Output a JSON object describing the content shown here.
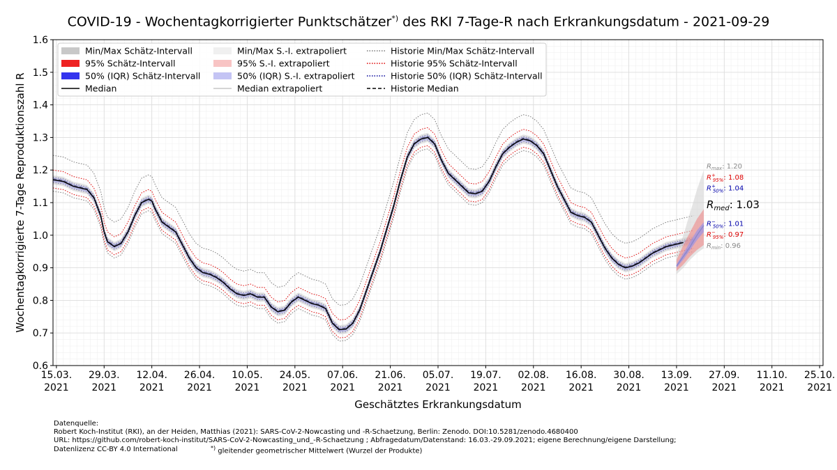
{
  "title": {
    "main": "COVID-19 - Wochentagkorrigierter Punktschätzer",
    "sup": "*)",
    "rest": " des RKI 7-Tage-R nach Erkrankungsdatum - 2021-09-29"
  },
  "colors": {
    "minmax": "#c8c8c8",
    "ci95": "#ee2222",
    "iqr50": "#3333ee",
    "median": "#000000",
    "hist_minmax": "#777777",
    "hist_95": "#dd0000",
    "hist_50": "#000099",
    "grid": "#dddddd"
  },
  "chart_data": {
    "type": "line",
    "xlabel": "Geschätztes Erkrankungsdatum",
    "ylabel": "Wochentagkorrigierte 7-Tage Reproduktionszahl R",
    "ylim": [
      0.6,
      1.6
    ],
    "xlim_days": [
      -1,
      225
    ],
    "x_start_date": "2021-03-15",
    "y_ticks": [
      "0.6",
      "0.7",
      "0.8",
      "0.9",
      "1.0",
      "1.1",
      "1.2",
      "1.3",
      "1.4",
      "1.5",
      "1.6"
    ],
    "x_ticks": [
      {
        "day": 0,
        "line1": "15.03.",
        "line2": "2021"
      },
      {
        "day": 14,
        "line1": "29.03.",
        "line2": "2021"
      },
      {
        "day": 28,
        "line1": "12.04.",
        "line2": "2021"
      },
      {
        "day": 42,
        "line1": "26.04.",
        "line2": "2021"
      },
      {
        "day": 56,
        "line1": "10.05.",
        "line2": "2021"
      },
      {
        "day": 70,
        "line1": "24.05.",
        "line2": "2021"
      },
      {
        "day": 84,
        "line1": "07.06.",
        "line2": "2021"
      },
      {
        "day": 98,
        "line1": "21.06.",
        "line2": "2021"
      },
      {
        "day": 112,
        "line1": "05.07.",
        "line2": "2021"
      },
      {
        "day": 126,
        "line1": "19.07.",
        "line2": "2021"
      },
      {
        "day": 140,
        "line1": "02.08.",
        "line2": "2021"
      },
      {
        "day": 154,
        "line1": "16.08.",
        "line2": "2021"
      },
      {
        "day": 168,
        "line1": "30.08.",
        "line2": "2021"
      },
      {
        "day": 182,
        "line1": "13.09.",
        "line2": "2021"
      },
      {
        "day": 196,
        "line1": "27.09.",
        "line2": "2021"
      },
      {
        "day": 210,
        "line1": "11.10.",
        "line2": "2021"
      },
      {
        "day": 224,
        "line1": "25.10.",
        "line2": "2021"
      }
    ],
    "median_history": {
      "days": [
        -1,
        2,
        5,
        7,
        9,
        11,
        13,
        14,
        15,
        17,
        19,
        21,
        23,
        25,
        27,
        28,
        29,
        31,
        33,
        35,
        37,
        39,
        41,
        43,
        45,
        47,
        49,
        51,
        53,
        55,
        57,
        59,
        61,
        63,
        65,
        67,
        69,
        71,
        73,
        75,
        77,
        79,
        81,
        83,
        85,
        87,
        89,
        91,
        93,
        95,
        97,
        99,
        101,
        103,
        105,
        107,
        109,
        111,
        113,
        115,
        117,
        119,
        121,
        123,
        125,
        127,
        129,
        131,
        133,
        135,
        137,
        139,
        141,
        143,
        145,
        147,
        149,
        151,
        153,
        155,
        157,
        159,
        161,
        163,
        165,
        167,
        169,
        171,
        173,
        175,
        177,
        179,
        181,
        183,
        185,
        187
      ],
      "values": [
        1.17,
        1.165,
        1.15,
        1.145,
        1.14,
        1.115,
        1.06,
        1.01,
        0.98,
        0.965,
        0.975,
        1.01,
        1.06,
        1.1,
        1.11,
        1.105,
        1.08,
        1.04,
        1.025,
        1.01,
        0.97,
        0.93,
        0.9,
        0.885,
        0.88,
        0.87,
        0.855,
        0.835,
        0.82,
        0.815,
        0.82,
        0.81,
        0.81,
        0.78,
        0.765,
        0.77,
        0.795,
        0.81,
        0.8,
        0.79,
        0.785,
        0.775,
        0.73,
        0.71,
        0.712,
        0.73,
        0.77,
        0.83,
        0.89,
        0.95,
        1.02,
        1.09,
        1.17,
        1.24,
        1.28,
        1.295,
        1.3,
        1.28,
        1.23,
        1.19,
        1.17,
        1.15,
        1.13,
        1.127,
        1.135,
        1.165,
        1.21,
        1.25,
        1.27,
        1.285,
        1.295,
        1.29,
        1.275,
        1.25,
        1.2,
        1.15,
        1.11,
        1.07,
        1.06,
        1.055,
        1.04,
        1.0,
        0.96,
        0.93,
        0.91,
        0.9,
        0.905,
        0.915,
        0.93,
        0.945,
        0.955,
        0.965,
        0.97,
        0.975,
        0.98,
        0.985
      ]
    },
    "offsets": {
      "iqr50": [
        -0.008,
        0.008
      ],
      "ci95": [
        -0.025,
        0.03
      ],
      "minmax": [
        -0.035,
        0.075
      ]
    },
    "extrapolated": {
      "days": [
        182,
        184,
        186,
        188,
        190
      ],
      "median": [
        0.905,
        0.935,
        0.965,
        1.0,
        1.03
      ],
      "min": [
        0.88,
        0.9,
        0.925,
        0.945,
        0.96
      ],
      "max": [
        0.94,
        1.0,
        1.07,
        1.14,
        1.2
      ],
      "low95": [
        0.89,
        0.91,
        0.935,
        0.955,
        0.97
      ],
      "high95": [
        0.925,
        0.97,
        1.01,
        1.05,
        1.08
      ],
      "low50": [
        0.9,
        0.925,
        0.955,
        0.985,
        1.01
      ],
      "high50": [
        0.91,
        0.945,
        0.98,
        1.015,
        1.04
      ]
    },
    "annotations": [
      {
        "label": "R",
        "sub": "max",
        "sup": "",
        "value": ": 1.20",
        "y": 1.205,
        "color": "#888888",
        "big": false
      },
      {
        "label": "R",
        "sub": "95%",
        "sup": "+",
        "value": ": 1.08",
        "y": 1.17,
        "color": "#dd0000",
        "big": false
      },
      {
        "label": "R",
        "sub": "50%",
        "sup": "+",
        "value": ": 1.04",
        "y": 1.137,
        "color": "#0000aa",
        "big": false
      },
      {
        "label": "R",
        "sub": "med",
        "sup": "",
        "value": ": 1.03",
        "y": 1.083,
        "color": "#000000",
        "big": true
      },
      {
        "label": "R",
        "sub": "50%",
        "sup": "−",
        "value": ": 1.01",
        "y": 1.028,
        "color": "#0000aa",
        "big": false
      },
      {
        "label": "R",
        "sub": "95%",
        "sup": "−",
        "value": ": 0.97",
        "y": 0.995,
        "color": "#dd0000",
        "big": false
      },
      {
        "label": "R",
        "sub": "min",
        "sup": "",
        "value": ": 0.96",
        "y": 0.961,
        "color": "#888888",
        "big": false
      }
    ],
    "legend": {
      "placement": "top-left",
      "columns": [
        [
          {
            "label": "Min/Max Schätz-Intervall",
            "kind": "patch",
            "color": "#c8c8c8"
          },
          {
            "label": "95% Schätz-Intervall",
            "kind": "patch",
            "color": "#ee2222"
          },
          {
            "label": "50% (IQR) Schätz-Intervall",
            "kind": "patch",
            "color": "#3333ee"
          },
          {
            "label": "Median",
            "kind": "line",
            "color": "#000000",
            "dash": ""
          }
        ],
        [
          {
            "label": "Min/Max S.-I. extrapoliert",
            "kind": "patch",
            "color": "#f0f0f0"
          },
          {
            "label": "95% S.-I. extrapoliert",
            "kind": "patch",
            "color": "#f8c4c4"
          },
          {
            "label": "50% (IQR) S.-I. extrapoliert",
            "kind": "patch",
            "color": "#c4c4f4"
          },
          {
            "label": "Median extrapoliert",
            "kind": "line",
            "color": "#aaaaaa",
            "dash": ""
          }
        ],
        [
          {
            "label": "Historie Min/Max Schätz-Intervall",
            "kind": "line",
            "color": "#777777",
            "dash": "1.5,2"
          },
          {
            "label": "Historie 95% Schätz-Intervall",
            "kind": "line",
            "color": "#dd0000",
            "dash": "1.5,2"
          },
          {
            "label": "Historie 50% (IQR) Schätz-Intervall",
            "kind": "line",
            "color": "#000099",
            "dash": "1.5,2"
          },
          {
            "label": "Historie Median",
            "kind": "line",
            "color": "#000000",
            "dash": "5,3"
          }
        ]
      ]
    }
  },
  "footer": {
    "line1": "Datenquelle:",
    "line2": "Robert Koch-Institut (RKI), an der Heiden, Matthias (2021): SARS-CoV-2-Nowcasting und -R-Schaetzung, Berlin: Zenodo. DOI:10.5281/zenodo.4680400",
    "line3": "URL: https://github.com/robert-koch-institut/SARS-CoV-2-Nowcasting_und_-R-Schaetzung ; Abfragedatum/Datenstand: 16.03.-29.09.2021; eigene Berechnung/eigene Darstellung;",
    "line4a": "Datenlizenz CC-BY 4.0 International",
    "line4b_sup": "*)",
    "line4b": " gleitender geometrischer Mittelwert (Wurzel der Produkte)"
  }
}
